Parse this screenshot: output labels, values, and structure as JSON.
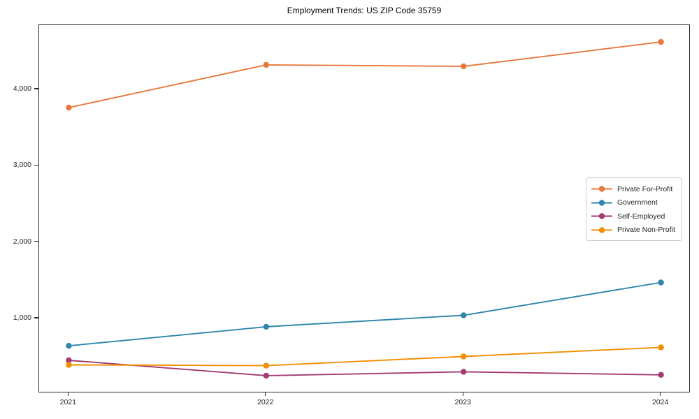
{
  "title": "Employment Trends: US ZIP Code 35759",
  "chart_data": {
    "type": "line",
    "title": "Employment Trends: US ZIP Code 35759",
    "xlabel": "",
    "ylabel": "",
    "x": [
      2021,
      2022,
      2023,
      2024
    ],
    "x_tick_labels": [
      "2021",
      "2022",
      "2023",
      "2024"
    ],
    "series": [
      {
        "name": "Private For-Profit",
        "color": "#E8793E",
        "values": [
          3760,
          4320,
          4300,
          4620
        ]
      },
      {
        "name": "Government",
        "color": "#2E86AB",
        "values": [
          640,
          890,
          1040,
          1470
        ]
      },
      {
        "name": "Self-Employed",
        "color": "#A23B72",
        "values": [
          450,
          250,
          300,
          260
        ]
      },
      {
        "name": "Private Non-Profit",
        "color": "#F18F01",
        "values": [
          390,
          380,
          500,
          620
        ]
      }
    ],
    "y_ticks": [
      {
        "value": 1000,
        "label": "1,000"
      },
      {
        "value": 2000,
        "label": "2,000"
      },
      {
        "value": 3000,
        "label": "3,000"
      },
      {
        "value": 4000,
        "label": "4,000"
      }
    ],
    "xlim": [
      2020.85,
      2024.15
    ],
    "ylim": [
      20,
      4840
    ],
    "grid": false,
    "legend_position": "center-right",
    "marker": "circle",
    "line_width": 1.9,
    "marker_radius": 4.2
  }
}
